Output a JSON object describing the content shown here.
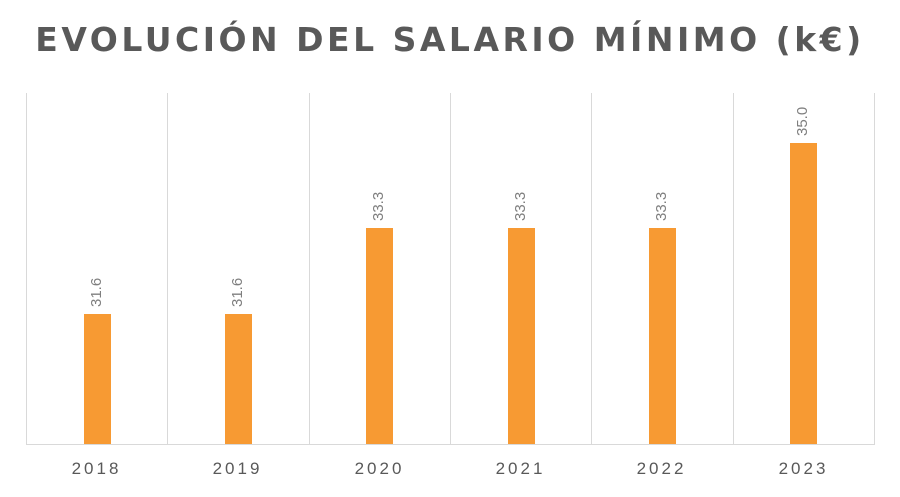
{
  "chart_data": {
    "type": "bar",
    "title": "EVOLUCIÓN DEL SALARIO MÍNIMO (k€)",
    "categories": [
      "2018",
      "2019",
      "2020",
      "2021",
      "2022",
      "2023"
    ],
    "values": [
      31.6,
      31.6,
      33.3,
      33.3,
      33.3,
      35.0
    ],
    "value_labels": [
      "31.6",
      "31.6",
      "33.3",
      "33.3",
      "33.3",
      "35.0"
    ],
    "xlabel": "",
    "ylabel": "",
    "ylim": [
      29.0,
      36.0
    ],
    "grid": "vertical category separators",
    "legend": "none",
    "bar_color": "#f79a33"
  }
}
